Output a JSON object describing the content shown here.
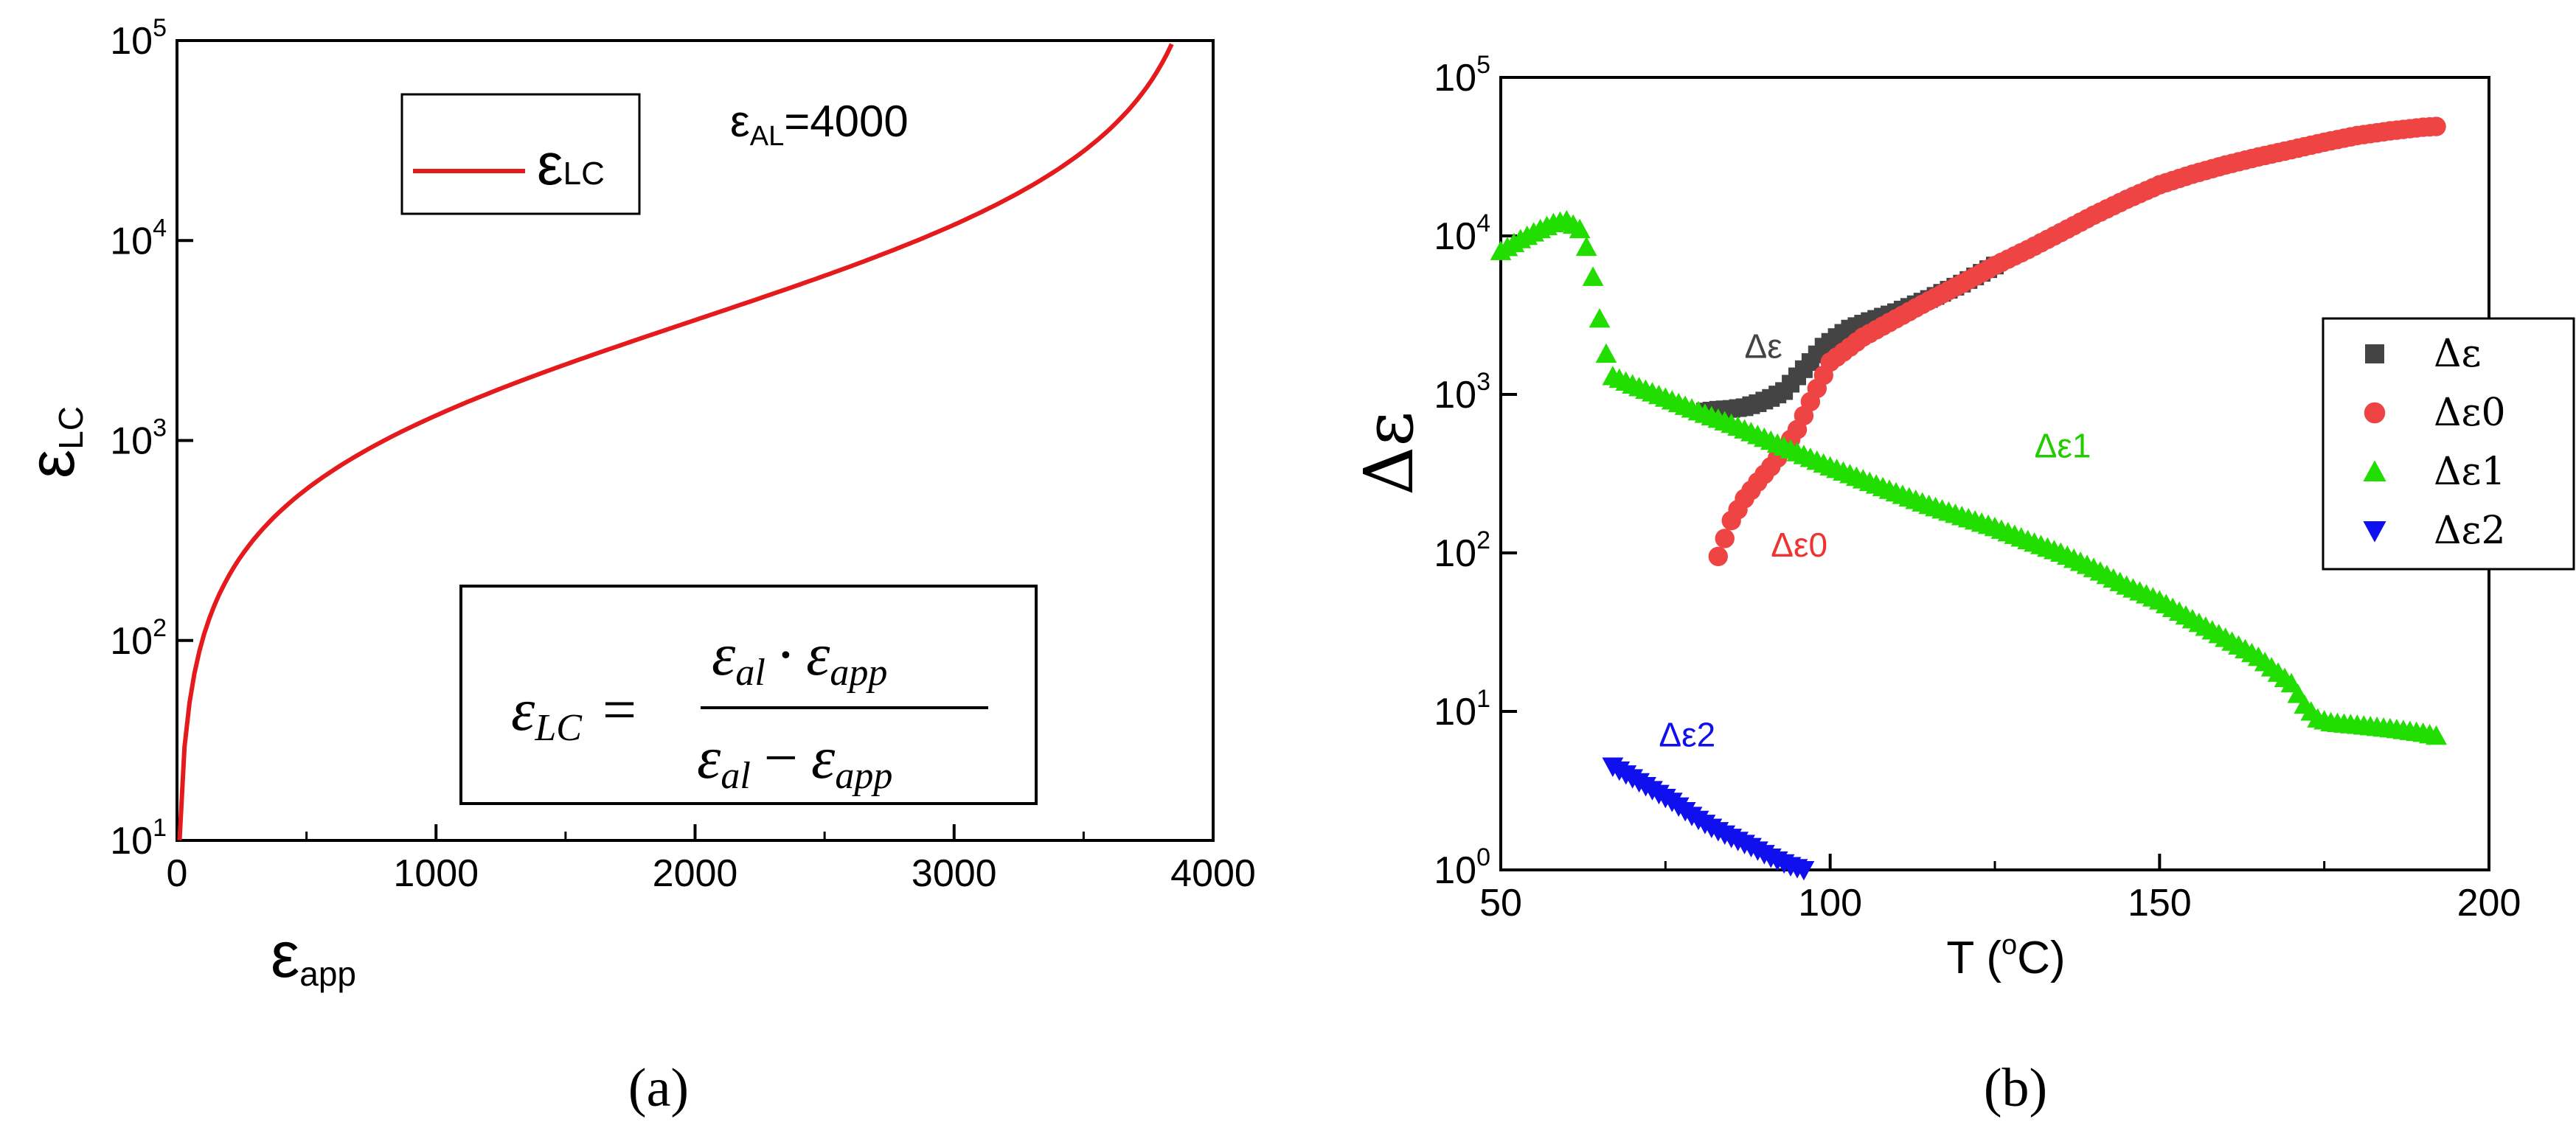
{
  "chart_data": [
    {
      "id": "a",
      "type": "line",
      "caption": "(a)",
      "xlabel": "ε",
      "xlabel_sub": "app",
      "ylabel": "ε",
      "ylabel_sub": "LC",
      "xlim": [
        0,
        4000
      ],
      "ylim": [
        10,
        100000
      ],
      "yscale": "log",
      "xticks": [
        "0",
        "1000",
        "2000",
        "3000",
        "4000"
      ],
      "xtick_values": [
        0,
        1000,
        2000,
        3000,
        4000
      ],
      "ytick_values": [
        10,
        100,
        1000,
        10000,
        100000
      ],
      "ytick_exponents": [
        "1",
        "2",
        "3",
        "4",
        "5"
      ],
      "ytick_base": "10",
      "annotation": {
        "prefix": "ε",
        "sub": "AL",
        "suffix": "=4000"
      },
      "legend": {
        "label": "ε",
        "label_sub": "LC",
        "color": "#e41a1c",
        "position": "top-left"
      },
      "formula": {
        "lhs": "ε",
        "lhs_sub": "LC",
        "eq": "=",
        "num_a": "ε",
        "num_a_sub": "al",
        "dot": "·",
        "num_b": "ε",
        "num_b_sub": "app",
        "den_a": "ε",
        "den_a_sub": "al",
        "minus": "−",
        "den_b": "ε",
        "den_b_sub": "app"
      },
      "series": [
        {
          "name": "εLC",
          "color": "#e41a1c",
          "eps_al": 4000,
          "x_start": 10,
          "x_end": 3840,
          "formula": "eps_al*x/(eps_al-x)"
        }
      ]
    },
    {
      "id": "b",
      "type": "scatter",
      "caption": "(b)",
      "xlabel": "T (",
      "xlabel_sup": "o",
      "xlabel_end": "C)",
      "ylabel": "Δε",
      "xlim": [
        50,
        200
      ],
      "ylim": [
        1,
        100000
      ],
      "yscale": "log",
      "xticks": [
        "50",
        "100",
        "150",
        "200"
      ],
      "xtick_values": [
        50,
        100,
        150,
        200
      ],
      "ytick_values": [
        1,
        10,
        100,
        1000,
        10000,
        100000
      ],
      "ytick_exponents": [
        "0",
        "1",
        "2",
        "3",
        "4",
        "5"
      ],
      "ytick_base": "10",
      "legend": {
        "position": "right",
        "entries": [
          {
            "label": "Δε",
            "marker": "square",
            "color": "#444444"
          },
          {
            "label": "Δε0",
            "marker": "circle",
            "color": "#ee4444"
          },
          {
            "label": "Δε1",
            "marker": "triangle",
            "color": "#22dd00"
          },
          {
            "label": "Δε2",
            "marker": "triangle-down",
            "color": "#1010ee"
          }
        ]
      },
      "annotations": [
        {
          "text": "Δε",
          "color": "#444444",
          "x": 87,
          "y": 1700
        },
        {
          "text": "Δε0",
          "color": "#ee3333",
          "x": 91,
          "y": 95
        },
        {
          "text": "Δε1",
          "color": "#22cc00",
          "x": 131,
          "y": 400
        },
        {
          "text": "Δε2",
          "color": "#1010ee",
          "x": 74,
          "y": 6
        }
      ],
      "series": [
        {
          "name": "Δε",
          "color": "#444444",
          "marker": "square",
          "x": [
            81,
            83,
            85,
            87,
            89,
            91,
            93,
            95,
            97,
            99,
            101,
            103,
            106,
            110,
            115,
            120,
            125
          ],
          "y": [
            780,
            800,
            810,
            830,
            880,
            950,
            1050,
            1300,
            1600,
            2000,
            2300,
            2600,
            2900,
            3300,
            4000,
            5000,
            6500
          ]
        },
        {
          "name": "Δε0",
          "color": "#ee4444",
          "marker": "circle",
          "x": [
            83,
            85,
            87,
            89,
            91,
            93,
            95,
            97,
            100,
            105,
            110,
            115,
            120,
            125,
            130,
            135,
            140,
            145,
            150,
            155,
            160,
            165,
            170,
            175,
            180,
            185,
            190,
            192
          ],
          "y": [
            95,
            160,
            220,
            280,
            350,
            450,
            600,
            900,
            1600,
            2300,
            3000,
            3900,
            5000,
            6500,
            8200,
            10500,
            13500,
            17000,
            21000,
            24500,
            28000,
            31500,
            35000,
            39000,
            43000,
            46000,
            48500,
            49000
          ]
        },
        {
          "name": "Δε1",
          "color": "#22dd00",
          "marker": "triangle",
          "x": [
            50,
            53,
            56,
            58,
            60,
            62,
            63,
            64,
            65,
            66,
            67,
            68,
            70,
            75,
            80,
            85,
            90,
            95,
            100,
            105,
            110,
            115,
            120,
            125,
            130,
            135,
            140,
            145,
            150,
            155,
            160,
            165,
            170,
            172,
            174,
            176,
            180,
            185,
            190,
            192
          ],
          "y": [
            8000,
            9500,
            11000,
            12000,
            12500,
            11000,
            8500,
            5500,
            3000,
            1800,
            1300,
            1250,
            1150,
            950,
            780,
            650,
            530,
            430,
            350,
            290,
            240,
            200,
            170,
            145,
            120,
            100,
            80,
            62,
            50,
            38,
            29,
            22,
            15,
            11,
            9,
            8.5,
            8.2,
            7.8,
            7.3,
            7
          ]
        },
        {
          "name": "Δε2",
          "color": "#1010ee",
          "marker": "triangle-down",
          "x": [
            67,
            70,
            73,
            76,
            79,
            82,
            85,
            88,
            91,
            94,
            96
          ],
          "y": [
            4.5,
            3.8,
            3.2,
            2.7,
            2.2,
            1.85,
            1.6,
            1.4,
            1.2,
            1.06,
            1.0
          ]
        }
      ]
    }
  ]
}
